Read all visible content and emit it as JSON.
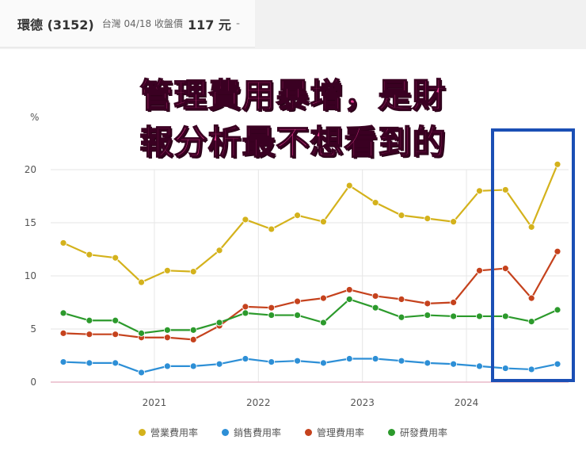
{
  "header": {
    "stock_name": "環德 (3152)",
    "market_date": "台灣 04/18 收盤價",
    "price": "117 元",
    "change": "-"
  },
  "overlay_text": {
    "line1": "管理費用暴增，是財",
    "line2": "報分析最不想看到的"
  },
  "chart_data": {
    "type": "line",
    "ylabel": "%",
    "ylim": [
      0,
      20
    ],
    "yticks": [
      0,
      5,
      10,
      15,
      20
    ],
    "xticks": [
      "2021",
      "2022",
      "2023",
      "2024"
    ],
    "xtick_positions": [
      3.5,
      7.5,
      11.5,
      15.5
    ],
    "x": [
      0,
      1,
      2,
      3,
      4,
      5,
      6,
      7,
      8,
      9,
      10,
      11,
      12,
      13,
      14,
      15,
      16,
      17,
      18,
      19
    ],
    "legend_position": "bottom",
    "series": [
      {
        "name": "營業費用率",
        "color": "#d4b21c",
        "values": [
          13.1,
          12.0,
          11.7,
          9.4,
          10.5,
          10.4,
          12.4,
          15.3,
          14.4,
          15.7,
          15.1,
          18.5,
          16.9,
          15.7,
          15.4,
          15.1,
          18.0,
          18.1,
          14.6,
          20.5
        ]
      },
      {
        "name": "銷售費用率",
        "color": "#2d8fd6",
        "values": [
          1.9,
          1.8,
          1.8,
          0.9,
          1.5,
          1.5,
          1.7,
          2.2,
          1.9,
          2.0,
          1.8,
          2.2,
          2.2,
          2.0,
          1.8,
          1.7,
          1.5,
          1.3,
          1.2,
          1.7
        ]
      },
      {
        "name": "管理費用率",
        "color": "#c5421d",
        "values": [
          4.6,
          4.5,
          4.5,
          4.2,
          4.2,
          4.0,
          5.3,
          7.1,
          7.0,
          7.6,
          7.9,
          8.7,
          8.1,
          7.8,
          7.4,
          7.5,
          10.5,
          10.7,
          7.9,
          12.3
        ]
      },
      {
        "name": "研發費用率",
        "color": "#2c9a2c",
        "values": [
          6.5,
          5.8,
          5.8,
          4.6,
          4.9,
          4.9,
          5.6,
          6.5,
          6.3,
          6.3,
          5.6,
          7.8,
          7.0,
          6.1,
          6.3,
          6.2,
          6.2,
          6.2,
          5.7,
          6.8
        ]
      }
    ]
  }
}
